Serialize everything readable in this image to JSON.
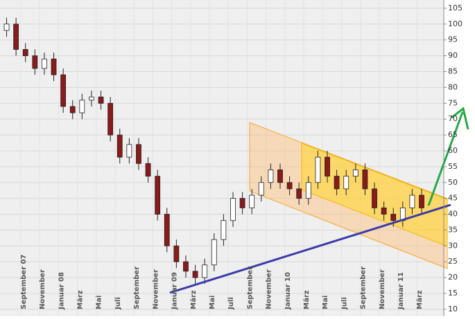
{
  "chart_data": {
    "type": "candlestick",
    "x": [
      -1.5,
      -0.5,
      0.5,
      1.5,
      2.5,
      3.5,
      4.5,
      5.5,
      6.5,
      7.5,
      8.5,
      9.5,
      10.5,
      11.5,
      12.5,
      13.5,
      14.5,
      15.5,
      16.5,
      17.5,
      18.5,
      19.5,
      20.5,
      21.5,
      22.5,
      23.5,
      24.5,
      25.5,
      26.5,
      27.5,
      28.5,
      29.5,
      30.5,
      31.5,
      32.5,
      33.5,
      34.5,
      35.5,
      36.5,
      37.5,
      38.5,
      39.5,
      40.5,
      41.5,
      42.5
    ],
    "open": [
      98,
      100,
      92,
      90,
      86,
      89,
      84,
      74,
      72,
      76,
      77,
      75,
      65,
      58,
      62,
      56,
      52,
      40,
      30,
      25,
      22,
      20,
      24,
      32,
      38,
      45,
      42,
      46,
      50,
      54,
      50,
      48,
      45,
      50,
      58,
      52,
      48,
      52,
      54,
      48,
      42,
      40,
      38,
      42,
      46
    ],
    "high": [
      102,
      102,
      94,
      92,
      91,
      91,
      86,
      76,
      78,
      79,
      79,
      77,
      67,
      64,
      64,
      58,
      54,
      42,
      32,
      27,
      24,
      26,
      34,
      40,
      47,
      47,
      48,
      52,
      56,
      56,
      52,
      50,
      52,
      60,
      60,
      54,
      54,
      56,
      56,
      50,
      44,
      42,
      44,
      48,
      48
    ],
    "low": [
      96,
      90,
      88,
      84,
      84,
      82,
      72,
      70,
      70,
      74,
      73,
      63,
      56,
      56,
      54,
      50,
      38,
      28,
      23,
      20,
      18,
      18,
      22,
      30,
      36,
      40,
      40,
      44,
      48,
      48,
      46,
      43,
      43,
      48,
      50,
      46,
      46,
      50,
      46,
      40,
      38,
      36,
      36,
      40,
      40
    ],
    "close": [
      100,
      92,
      90,
      86,
      89,
      84,
      74,
      72,
      76,
      77,
      75,
      65,
      58,
      62,
      56,
      52,
      40,
      30,
      25,
      22,
      20,
      24,
      32,
      38,
      45,
      42,
      46,
      50,
      54,
      50,
      48,
      45,
      50,
      58,
      52,
      48,
      52,
      54,
      48,
      42,
      40,
      38,
      42,
      46,
      42
    ],
    "up_color": "#ffffff",
    "down_color": "#8b1a1a",
    "xlim": [
      -2.2,
      44.85
    ],
    "xticks": [
      {
        "value": 0,
        "label": "September 07"
      },
      {
        "value": 2,
        "label": "November"
      },
      {
        "value": 4,
        "label": "Januar 08"
      },
      {
        "value": 6,
        "label": "März"
      },
      {
        "value": 8,
        "label": "Mai"
      },
      {
        "value": 10,
        "label": "Juli"
      },
      {
        "value": 12,
        "label": "September"
      },
      {
        "value": 14,
        "label": "November"
      },
      {
        "value": 16,
        "label": "Januar 09"
      },
      {
        "value": 18,
        "label": "März"
      },
      {
        "value": 20,
        "label": "Mai"
      },
      {
        "value": 22,
        "label": "Juli"
      },
      {
        "value": 24,
        "label": "September"
      },
      {
        "value": 26,
        "label": "November"
      },
      {
        "value": 28,
        "label": "Januar 10"
      },
      {
        "value": 30,
        "label": "März"
      },
      {
        "value": 32,
        "label": "Mai"
      },
      {
        "value": 34,
        "label": "Juli"
      },
      {
        "value": 36,
        "label": "September"
      },
      {
        "value": 38,
        "label": "November"
      },
      {
        "value": 40,
        "label": "Januar 11"
      },
      {
        "value": 42,
        "label": "März"
      }
    ],
    "ylim": [
      7.8,
      107.6
    ],
    "yticks": [
      10,
      15,
      20,
      25,
      30,
      35,
      40,
      45,
      50,
      55,
      60,
      65,
      70,
      75,
      80,
      85,
      90,
      95,
      100,
      105
    ],
    "grid": true
  }
}
